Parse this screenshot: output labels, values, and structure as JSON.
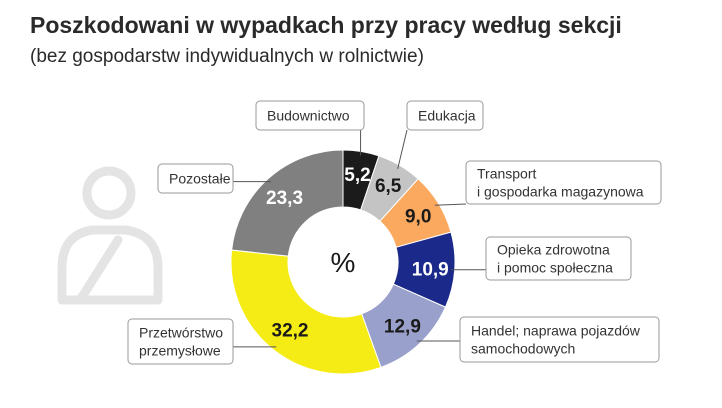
{
  "chart_data": {
    "type": "pie",
    "donut": true,
    "title": "Poszkodowani w wypadkach przy pracy według sekcji",
    "subtitle": "(bez gospodarstw indywidualnych w rolnictwie)",
    "center_label": "%",
    "slices": [
      {
        "label": "Budownictwo",
        "value": 5.2,
        "value_label": "5,2",
        "color": "#1b1b1b"
      },
      {
        "label": "Edukacja",
        "value": 6.5,
        "value_label": "6,5",
        "color": "#c4c4c4"
      },
      {
        "label": "Transport\ni gospodarka magazynowa",
        "value": 9.0,
        "value_label": "9,0",
        "color": "#fba95f"
      },
      {
        "label": "Opieka zdrowotna\ni pomoc społeczna",
        "value": 10.9,
        "value_label": "10,9",
        "color": "#1b2a8a"
      },
      {
        "label": "Handel; naprawa pojazdów\nsamochodowych",
        "value": 12.9,
        "value_label": "12,9",
        "color": "#9aa0cc"
      },
      {
        "label": "Przetwórstwo\nprzemysłowe",
        "value": 32.2,
        "value_label": "32,2",
        "color": "#f6ec15"
      },
      {
        "label": "Pozostałe",
        "value": 23.3,
        "value_label": "23,3",
        "color": "#808080"
      }
    ]
  },
  "colors": {
    "value_text_dark": "#ffffff",
    "value_text_light": "#1a1a1a",
    "label_border": "#9a9a9a",
    "leader_line": "#555555",
    "icon": "#e4e4e4"
  },
  "decor": {
    "icon": "person-icon"
  }
}
